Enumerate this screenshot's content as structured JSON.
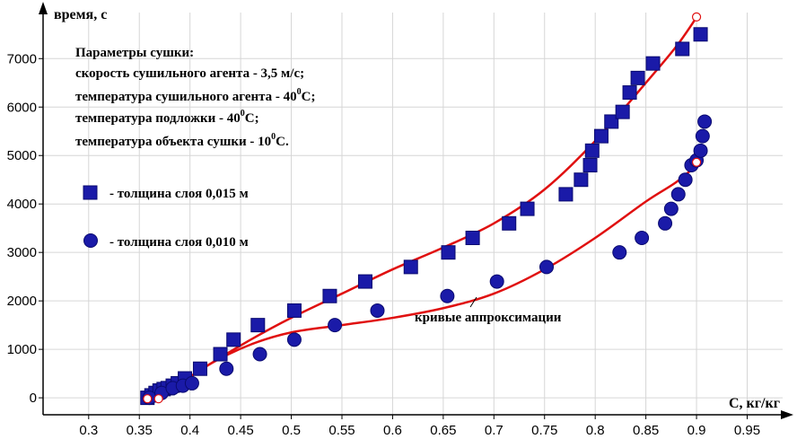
{
  "chart_data": {
    "type": "scatter",
    "xlabel": "С, кг/кг",
    "ylabel": "время, с",
    "xlim": [
      0.255,
      0.985
    ],
    "ylim": [
      -350,
      7950
    ],
    "xticks": [
      "0.3",
      "0.35",
      "0.4",
      "0.45",
      "0.5",
      "0.55",
      "0.6",
      "0.65",
      "0.7",
      "0.75",
      "0.8",
      "0.85",
      "0.9",
      "0.95"
    ],
    "yticks": [
      "0",
      "1000",
      "2000",
      "3000",
      "4000",
      "5000",
      "6000",
      "7000"
    ],
    "grid": true,
    "parameters": {
      "title": "Параметры сушки:",
      "lines": [
        {
          "text": "скорость сушильного агента - 3,5 м/с;",
          "sup": "",
          "tail": ""
        },
        {
          "text": "температура сушильного агента - 40",
          "sup": "0",
          "tail": "С;"
        },
        {
          "text": "температура подложки - 40",
          "sup": "0",
          "tail": "С;"
        },
        {
          "text": "температура объекта сушки - 10",
          "sup": "0",
          "tail": "С."
        }
      ]
    },
    "annotation": "кривые аппроксимации",
    "curve_color": "#e01010",
    "marker_color": "#1a1aa8",
    "series": [
      {
        "name": "- толщина слоя 0,015 м",
        "marker": "square",
        "x": [
          0.358,
          0.362,
          0.366,
          0.37,
          0.374,
          0.378,
          0.383,
          0.388,
          0.395,
          0.41,
          0.43,
          0.443,
          0.467,
          0.503,
          0.538,
          0.573,
          0.618,
          0.655,
          0.679,
          0.715,
          0.733,
          0.771,
          0.786,
          0.795,
          0.797,
          0.806,
          0.816,
          0.827,
          0.834,
          0.842,
          0.857,
          0.886,
          0.904
        ],
        "y": [
          0,
          50,
          100,
          150,
          180,
          200,
          250,
          300,
          400,
          600,
          900,
          1200,
          1500,
          1800,
          2100,
          2400,
          2700,
          3000,
          3300,
          3600,
          3900,
          4200,
          4500,
          4800,
          5100,
          5400,
          5700,
          5900,
          6300,
          6600,
          6900,
          7200,
          7500
        ]
      },
      {
        "name": "- толщина слоя 0,010 м",
        "marker": "circle",
        "x": [
          0.36,
          0.372,
          0.383,
          0.393,
          0.402,
          0.436,
          0.469,
          0.503,
          0.543,
          0.585,
          0.654,
          0.703,
          0.752,
          0.824,
          0.846,
          0.869,
          0.875,
          0.882,
          0.889,
          0.895,
          0.9,
          0.904,
          0.906,
          0.908
        ],
        "y": [
          0,
          100,
          200,
          250,
          300,
          600,
          900,
          1200,
          1500,
          1800,
          2100,
          2400,
          2700,
          3000,
          3300,
          3600,
          3900,
          4200,
          4500,
          4800,
          4900,
          5100,
          5400,
          5700
        ]
      }
    ],
    "approximation_curves": [
      {
        "x": [
          0.358,
          0.38,
          0.42,
          0.46,
          0.5,
          0.55,
          0.6,
          0.65,
          0.7,
          0.75,
          0.8,
          0.85,
          0.88,
          0.9
        ],
        "y": [
          -100,
          150,
          700,
          1200,
          1650,
          2150,
          2650,
          3100,
          3600,
          4300,
          5300,
          6500,
          7250,
          7850
        ]
      },
      {
        "x": [
          0.362,
          0.38,
          0.42,
          0.46,
          0.5,
          0.55,
          0.6,
          0.65,
          0.7,
          0.75,
          0.8,
          0.85,
          0.88,
          0.9
        ],
        "y": [
          -100,
          150,
          700,
          1100,
          1350,
          1500,
          1650,
          1850,
          2150,
          2650,
          3300,
          4050,
          4450,
          4800
        ]
      }
    ],
    "curve_end_markers": [
      {
        "x": 0.358,
        "y": -20
      },
      {
        "x": 0.369,
        "y": -20
      },
      {
        "x": 0.9,
        "y": 7860
      },
      {
        "x": 0.9,
        "y": 4860
      }
    ]
  }
}
